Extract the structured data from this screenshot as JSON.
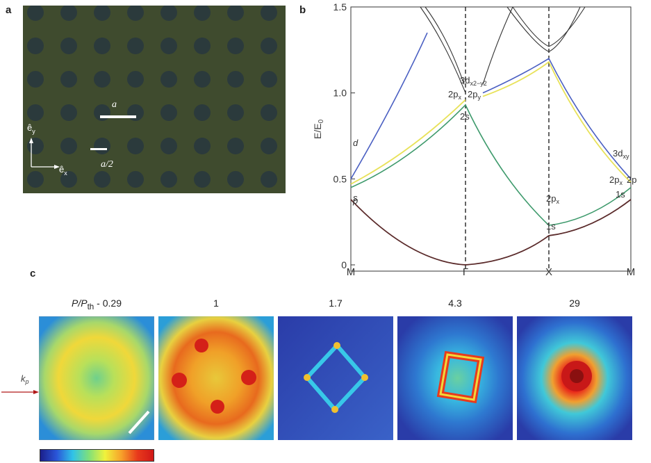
{
  "panel_a": {
    "letter": "a",
    "label_a": "a",
    "label_a2": "a/2",
    "axis_y": "ê",
    "axis_y_sub": "y",
    "axis_x": "ê",
    "axis_x_sub": "x",
    "colors": {
      "background": "#3e4a2c",
      "dot": "#2b3a3c",
      "scale_bar": "#ffffff"
    }
  },
  "panel_b": {
    "letter": "b",
    "ylabel": "E/E",
    "ylabel_sub": "0",
    "yticks": [
      "0",
      "0.5",
      "1.0",
      "1.5"
    ],
    "xticks": [
      "M",
      "Γ",
      "X",
      "M"
    ],
    "labels": {
      "d": "d",
      "p": "p",
      "s": "s",
      "s2": "2s",
      "p2x": "2p",
      "p2x_sub": "x",
      "p2y": "2p",
      "p2y_sub": "y",
      "d3": "3d",
      "d3_sub": "x2−y2",
      "x_2px": "2p",
      "x_2px_sub": "x",
      "x_1s": "1s",
      "m_3d": "3d",
      "m_3d_sub": "xy",
      "m_2px": "2p",
      "m_2px_sub": "x",
      "m_2p": "2p",
      "m_1s": "1s"
    },
    "colors": {
      "blue": "#4a5fc2",
      "yellow": "#e8e25a",
      "green": "#3e9a6c",
      "dark": "#5a2a2a",
      "black": "#333333"
    }
  },
  "chart_data": {
    "type": "line",
    "x": [
      "M",
      "Γ",
      "X",
      "M"
    ],
    "ylabel": "E/E0",
    "ylim": [
      0,
      1.5
    ],
    "series": [
      {
        "values": [
          0.38,
          0.0,
          0.17,
          0.38
        ]
      },
      {
        "values": [
          0.45,
          0.93,
          0.23,
          0.45
        ]
      },
      {
        "values": [
          0.47,
          0.96,
          1.18,
          0.48
        ]
      },
      {
        "values": [
          0.5,
          1.0,
          1.2,
          0.5
        ]
      }
    ]
  },
  "panel_c": {
    "letter": "c",
    "powers": [
      "P/P",
      "1",
      "1.7",
      "4.3",
      "29"
    ],
    "power_sub": "th",
    "power_first_value": " - 0.29",
    "kp": "k",
    "kp_sub": "p"
  }
}
